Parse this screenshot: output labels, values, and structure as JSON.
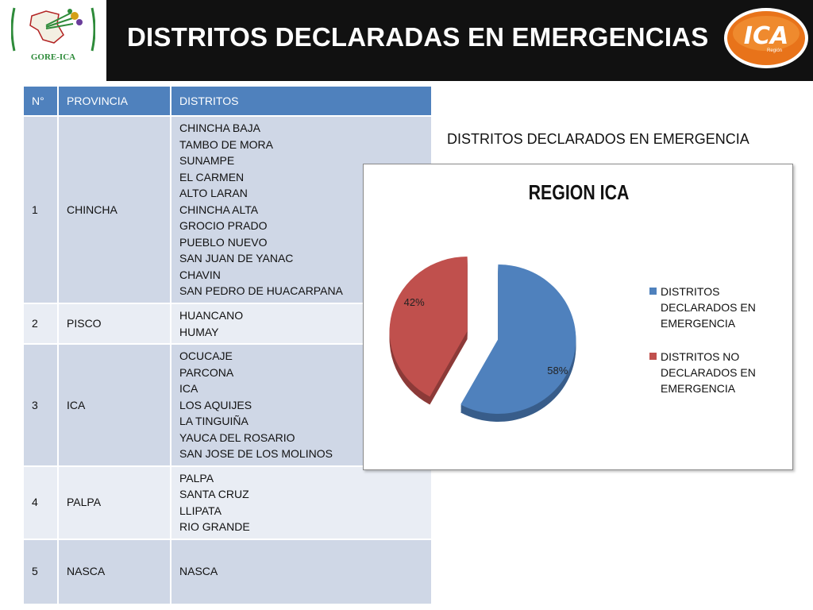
{
  "header": {
    "title": "DISTRITOS DECLARADAS EN EMERGENCIAS",
    "left_logo_text": "GORE-ICA",
    "right_logo_text": "ICA",
    "right_logo_subtext": "Región"
  },
  "table": {
    "headers": [
      "N°",
      "PROVINCIA",
      "DISTRITOS"
    ],
    "rows": [
      {
        "num": "1",
        "province": "CHINCHA",
        "districts": [
          "CHINCHA BAJA",
          "TAMBO DE MORA",
          "SUNAMPE",
          "EL CARMEN",
          "ALTO LARAN",
          "CHINCHA ALTA",
          "GROCIO PRADO",
          "PUEBLO NUEVO",
          "SAN JUAN DE YANAC",
          "CHAVIN",
          "SAN PEDRO DE HUACARPANA"
        ]
      },
      {
        "num": "2",
        "province": "PISCO",
        "districts": [
          "HUANCANO",
          "HUMAY"
        ]
      },
      {
        "num": "3",
        "province": "ICA",
        "districts": [
          "OCUCAJE",
          "PARCONA",
          "ICA",
          "LOS AQUIJES",
          "LA TINGUIÑA",
          "YAUCA DEL ROSARIO",
          "SAN JOSE DE  LOS MOLINOS"
        ]
      },
      {
        "num": "4",
        "province": "PALPA",
        "districts": [
          "PALPA",
          "SANTA CRUZ",
          "LLIPATA",
          "RIO GRANDE"
        ]
      },
      {
        "num": "5",
        "province": "NASCA",
        "districts": [
          "NASCA"
        ]
      }
    ]
  },
  "subtitle": "DISTRITOS DECLARADOS EN EMERGENCIA",
  "chart_data": {
    "type": "pie",
    "title": "REGION ICA",
    "categories": [
      "DISTRITOS DECLARADOS EN EMERGENCIA",
      "DISTRITOS NO DECLARADOS EN EMERGENCIA"
    ],
    "values": [
      58,
      42
    ],
    "data_labels": [
      "58%",
      "42%"
    ],
    "colors": [
      "#4f81bd",
      "#c0504d"
    ],
    "legend_position": "right",
    "exploded": true,
    "three_d": true
  }
}
